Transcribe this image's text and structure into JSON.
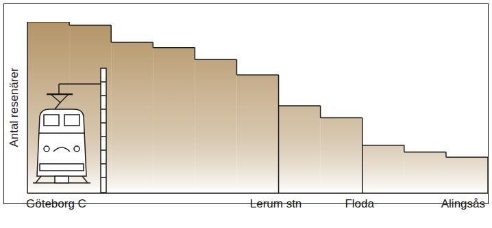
{
  "chart_data": {
    "type": "step_area",
    "y_label": "Antal resenärer",
    "categories": [
      "Göteborg C",
      null,
      null,
      null,
      null,
      null,
      "Lerum stn",
      null,
      "Floda",
      null,
      null,
      "Alingsås"
    ],
    "values": [
      100,
      98,
      88,
      85,
      78,
      69,
      51,
      44,
      28,
      24,
      21,
      null
    ],
    "color": "#b39466",
    "ylim": [
      0,
      100
    ],
    "tick_labels": "x",
    "grid": false
  }
}
